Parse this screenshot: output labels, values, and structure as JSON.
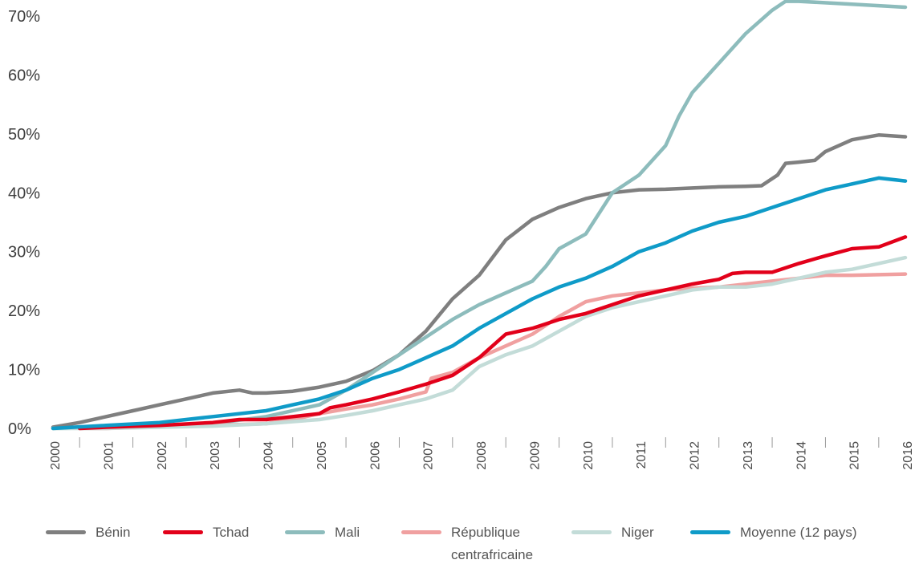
{
  "chart_data": {
    "type": "line",
    "title": "",
    "xlabel": "",
    "ylabel": "",
    "ylim": [
      0,
      70
    ],
    "xlim": [
      2000,
      2016
    ],
    "yticks": [
      "0%",
      "10%",
      "20%",
      "30%",
      "40%",
      "50%",
      "60%",
      "70%"
    ],
    "xticks": [
      "2000",
      "2001",
      "2002",
      "2003",
      "2004",
      "2005",
      "2006",
      "2007",
      "2008",
      "2009",
      "2010",
      "2011",
      "2012",
      "2013",
      "2014",
      "2015",
      "2016"
    ],
    "grid": false,
    "legend_position": "bottom",
    "series": [
      {
        "name": "Bénin",
        "color": "#7f7f7f",
        "points": [
          [
            2000,
            0.2
          ],
          [
            2000.5,
            1
          ],
          [
            2001,
            2
          ],
          [
            2001.5,
            3
          ],
          [
            2002,
            4
          ],
          [
            2002.5,
            5
          ],
          [
            2003,
            6
          ],
          [
            2003.5,
            6.5
          ],
          [
            2003.75,
            6
          ],
          [
            2004,
            6
          ],
          [
            2004.5,
            6.3
          ],
          [
            2005,
            7
          ],
          [
            2005.5,
            8
          ],
          [
            2006,
            9.8
          ],
          [
            2006.5,
            12.5
          ],
          [
            2007,
            16.5
          ],
          [
            2007.5,
            22
          ],
          [
            2008,
            26
          ],
          [
            2008.5,
            32
          ],
          [
            2009,
            35.5
          ],
          [
            2009.5,
            37.5
          ],
          [
            2010,
            39
          ],
          [
            2010.5,
            40
          ],
          [
            2011,
            40.5
          ],
          [
            2011.5,
            40.6
          ],
          [
            2012,
            40.8
          ],
          [
            2012.5,
            41
          ],
          [
            2013,
            41.1
          ],
          [
            2013.3,
            41.2
          ],
          [
            2013.6,
            43
          ],
          [
            2013.75,
            45
          ],
          [
            2014,
            45.2
          ],
          [
            2014.3,
            45.5
          ],
          [
            2014.5,
            47
          ],
          [
            2015,
            49
          ],
          [
            2015.5,
            49.8
          ],
          [
            2016,
            49.5
          ]
        ]
      },
      {
        "name": "Mali",
        "color": "#8dbcbc",
        "points": [
          [
            2000,
            0
          ],
          [
            2001,
            0.1
          ],
          [
            2002,
            0.3
          ],
          [
            2003,
            0.8
          ],
          [
            2004,
            2
          ],
          [
            2005,
            4
          ],
          [
            2005.5,
            6.5
          ],
          [
            2006,
            9.5
          ],
          [
            2006.5,
            12.5
          ],
          [
            2007,
            15.5
          ],
          [
            2007.5,
            18.5
          ],
          [
            2008,
            21
          ],
          [
            2008.5,
            23
          ],
          [
            2009,
            25
          ],
          [
            2009.25,
            27.5
          ],
          [
            2009.5,
            30.5
          ],
          [
            2010,
            33
          ],
          [
            2010.5,
            40
          ],
          [
            2011,
            43
          ],
          [
            2011.5,
            48
          ],
          [
            2011.75,
            53
          ],
          [
            2012,
            57
          ],
          [
            2012.5,
            62
          ],
          [
            2013,
            67
          ],
          [
            2013.5,
            71
          ],
          [
            2013.75,
            72.5
          ],
          [
            2014,
            72.5
          ],
          [
            2015,
            72
          ],
          [
            2016,
            71.5
          ]
        ]
      },
      {
        "name": "République centrafricaine",
        "color": "#f0a0a0",
        "points": [
          [
            2000.5,
            0
          ],
          [
            2001,
            0
          ],
          [
            2002,
            0.3
          ],
          [
            2003,
            0.5
          ],
          [
            2004,
            0.8
          ],
          [
            2004.5,
            1.5
          ],
          [
            2005,
            2.5
          ],
          [
            2005.5,
            3.3
          ],
          [
            2006,
            4
          ],
          [
            2006.5,
            5
          ],
          [
            2007,
            6.2
          ],
          [
            2007.1,
            8.5
          ],
          [
            2007.5,
            9.5
          ],
          [
            2008,
            12
          ],
          [
            2008.5,
            14
          ],
          [
            2009,
            16
          ],
          [
            2009.5,
            19
          ],
          [
            2010,
            21.5
          ],
          [
            2010.5,
            22.5
          ],
          [
            2011,
            23
          ],
          [
            2011.5,
            23.5
          ],
          [
            2012,
            23.8
          ],
          [
            2012.5,
            24
          ],
          [
            2013,
            24.5
          ],
          [
            2013.5,
            25
          ],
          [
            2014,
            25.5
          ],
          [
            2014.5,
            26
          ],
          [
            2015,
            26
          ],
          [
            2016,
            26.2
          ]
        ]
      },
      {
        "name": "Niger",
        "color": "#c3dcd8",
        "points": [
          [
            2000,
            0
          ],
          [
            2001,
            0
          ],
          [
            2002,
            0.2
          ],
          [
            2003,
            0.4
          ],
          [
            2004,
            0.8
          ],
          [
            2005,
            1.5
          ],
          [
            2005.5,
            2.2
          ],
          [
            2006,
            3
          ],
          [
            2006.5,
            4
          ],
          [
            2007,
            5
          ],
          [
            2007.5,
            6.5
          ],
          [
            2008,
            10.5
          ],
          [
            2008.5,
            12.5
          ],
          [
            2009,
            14
          ],
          [
            2009.5,
            16.5
          ],
          [
            2010,
            19
          ],
          [
            2010.5,
            20.5
          ],
          [
            2011,
            21.5
          ],
          [
            2011.5,
            22.5
          ],
          [
            2012,
            23.5
          ],
          [
            2012.5,
            24
          ],
          [
            2013,
            24
          ],
          [
            2013.5,
            24.5
          ],
          [
            2014,
            25.5
          ],
          [
            2014.5,
            26.5
          ],
          [
            2015,
            27
          ],
          [
            2015.5,
            28
          ],
          [
            2016,
            29
          ]
        ]
      },
      {
        "name": "Tchad",
        "color": "#e2001a",
        "points": [
          [
            2000.5,
            0
          ],
          [
            2001,
            0.2
          ],
          [
            2002,
            0.5
          ],
          [
            2003,
            1
          ],
          [
            2003.5,
            1.5
          ],
          [
            2004,
            1.5
          ],
          [
            2004.5,
            2
          ],
          [
            2005,
            2.5
          ],
          [
            2005.2,
            3.5
          ],
          [
            2005.5,
            4
          ],
          [
            2006,
            5
          ],
          [
            2006.5,
            6.2
          ],
          [
            2007,
            7.5
          ],
          [
            2007.5,
            9
          ],
          [
            2008,
            12
          ],
          [
            2008.5,
            16
          ],
          [
            2009,
            17
          ],
          [
            2009.5,
            18.5
          ],
          [
            2010,
            19.5
          ],
          [
            2010.5,
            21
          ],
          [
            2011,
            22.5
          ],
          [
            2011.5,
            23.5
          ],
          [
            2012,
            24.5
          ],
          [
            2012.5,
            25.3
          ],
          [
            2012.75,
            26.3
          ],
          [
            2013,
            26.5
          ],
          [
            2013.5,
            26.5
          ],
          [
            2014,
            28
          ],
          [
            2014.5,
            29.3
          ],
          [
            2015,
            30.5
          ],
          [
            2015.5,
            30.8
          ],
          [
            2016,
            32.5
          ]
        ]
      },
      {
        "name": "Moyenne (12 pays)",
        "color": "#0f9bc8",
        "points": [
          [
            2000,
            0
          ],
          [
            2001,
            0.5
          ],
          [
            2002,
            1
          ],
          [
            2002.5,
            1.5
          ],
          [
            2003,
            2
          ],
          [
            2004,
            3
          ],
          [
            2004.5,
            4
          ],
          [
            2005,
            5
          ],
          [
            2005.5,
            6.5
          ],
          [
            2006,
            8.5
          ],
          [
            2006.5,
            10
          ],
          [
            2007,
            12
          ],
          [
            2007.5,
            14
          ],
          [
            2008,
            17
          ],
          [
            2008.5,
            19.5
          ],
          [
            2009,
            22
          ],
          [
            2009.5,
            24
          ],
          [
            2010,
            25.5
          ],
          [
            2010.5,
            27.5
          ],
          [
            2011,
            30
          ],
          [
            2011.5,
            31.5
          ],
          [
            2012,
            33.5
          ],
          [
            2012.5,
            35
          ],
          [
            2013,
            36
          ],
          [
            2013.5,
            37.5
          ],
          [
            2014,
            39
          ],
          [
            2014.5,
            40.5
          ],
          [
            2015,
            41.5
          ],
          [
            2015.5,
            42.5
          ],
          [
            2016,
            42
          ]
        ]
      }
    ]
  },
  "legend": {
    "items": [
      {
        "label": "Bénin",
        "color": "#7f7f7f",
        "name": "legend-benin"
      },
      {
        "label": "Tchad",
        "color": "#e2001a",
        "name": "legend-tchad"
      },
      {
        "label": "Mali",
        "color": "#8dbcbc",
        "name": "legend-mali"
      },
      {
        "label": "République centrafricaine",
        "color": "#f0a0a0",
        "name": "legend-rca"
      },
      {
        "label": "Niger",
        "color": "#c3dcd8",
        "name": "legend-niger"
      },
      {
        "label": "Moyenne (12 pays)",
        "color": "#0f9bc8",
        "name": "legend-moyenne"
      }
    ]
  }
}
